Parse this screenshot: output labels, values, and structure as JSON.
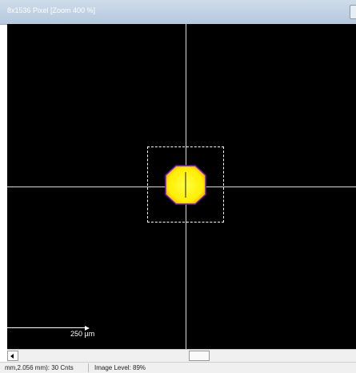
{
  "window": {
    "title": "8x1536 Pixel [Zoom 400 %]"
  },
  "viewer": {
    "scale_label": "250 µm"
  },
  "status": {
    "position_readout": "mm,2.056 mm): 30 Cnts",
    "image_level": "Image Level: 89%"
  },
  "colors": {
    "background": "#000000",
    "beam_center": "#ffff33",
    "beam_edge": "#ff9a00",
    "beam_outline": "#6a1ad0",
    "crosshair": "#d8d8d8"
  }
}
